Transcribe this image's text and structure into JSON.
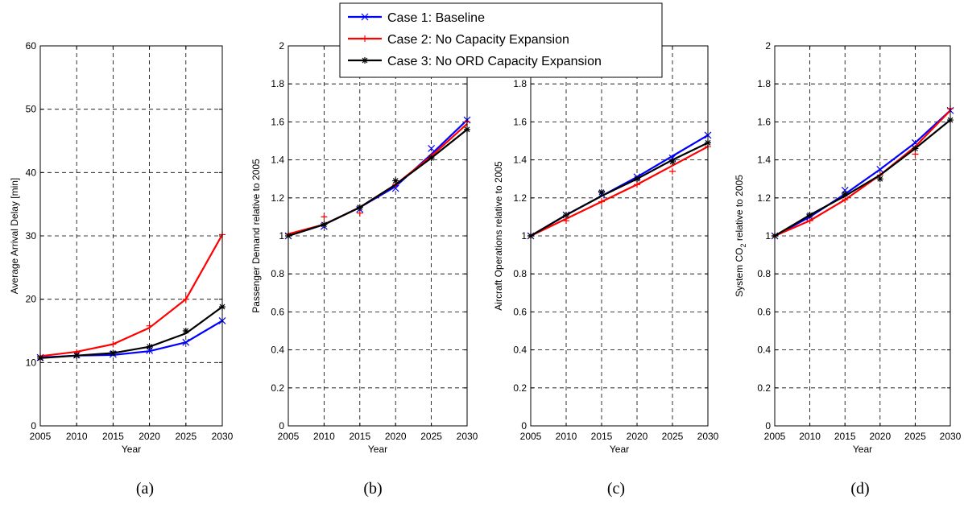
{
  "legend": {
    "entries": [
      {
        "label": "Case 1: Baseline",
        "color": "#0000ff",
        "marker": "x"
      },
      {
        "label": "Case 2: No Capacity Expansion",
        "color": "#ff0000",
        "marker": "+"
      },
      {
        "label": "Case 3: No ORD Capacity Expansion",
        "color": "#000000",
        "marker": "*"
      }
    ],
    "placement": "top-center"
  },
  "chart_data": [
    {
      "type": "line",
      "caption": "(a)",
      "xlabel": "Year",
      "ylabel": "Average Arrival Delay [min]",
      "x": [
        2005,
        2010,
        2015,
        2020,
        2025,
        2030
      ],
      "xlim": [
        2005,
        2030
      ],
      "ylim": [
        0,
        60
      ],
      "yticks": [
        0,
        10,
        20,
        30,
        40,
        50,
        60
      ],
      "ytick_labels": [
        "0",
        "10",
        "20",
        "30",
        "40",
        "50",
        "60"
      ],
      "grid": true,
      "series": [
        {
          "name": "Case 1: Baseline",
          "color": "#0000ff",
          "marker": "x",
          "line": [
            10.8,
            11.1,
            11.2,
            11.8,
            13.2,
            16.6
          ],
          "points": [
            10.8,
            11.2,
            11.3,
            11.9,
            13.2,
            16.6
          ]
        },
        {
          "name": "Case 2: No Capacity Expansion",
          "color": "#ff0000",
          "marker": "+",
          "line": [
            11.0,
            11.7,
            12.9,
            15.5,
            20.0,
            30.2
          ],
          "points": [
            11.0,
            11.6,
            12.9,
            15.8,
            20.0,
            30.2
          ]
        },
        {
          "name": "Case 3: No ORD Capacity Expansion",
          "color": "#000000",
          "marker": "*",
          "line": [
            10.7,
            11.1,
            11.5,
            12.5,
            14.6,
            18.8
          ],
          "points": [
            10.7,
            11.1,
            11.5,
            12.5,
            15.0,
            18.8
          ]
        }
      ]
    },
    {
      "type": "line",
      "caption": "(b)",
      "xlabel": "Year",
      "ylabel": "Passenger Demand relative to 2005",
      "x": [
        2005,
        2010,
        2015,
        2020,
        2025,
        2030
      ],
      "xlim": [
        2005,
        2030
      ],
      "ylim": [
        0,
        2
      ],
      "yticks": [
        0,
        0.2,
        0.4,
        0.6,
        0.8,
        1.0,
        1.2,
        1.4,
        1.6,
        1.8,
        2.0
      ],
      "ytick_labels": [
        "0",
        "0.2",
        "0.4",
        "0.6",
        "0.8",
        "1",
        "1.2",
        "1.4",
        "1.6",
        "1.8",
        "2"
      ],
      "grid": true,
      "series": [
        {
          "name": "Case 1: Baseline",
          "color": "#0000ff",
          "marker": "x",
          "line": [
            1.0,
            1.06,
            1.15,
            1.26,
            1.43,
            1.61
          ],
          "points": [
            1.0,
            1.05,
            1.14,
            1.25,
            1.46,
            1.61
          ]
        },
        {
          "name": "Case 2: No Capacity Expansion",
          "color": "#ff0000",
          "marker": "+",
          "line": [
            1.01,
            1.06,
            1.15,
            1.27,
            1.42,
            1.59
          ],
          "points": [
            1.01,
            1.1,
            1.12,
            1.27,
            1.42,
            1.6
          ]
        },
        {
          "name": "Case 3: No ORD Capacity Expansion",
          "color": "#000000",
          "marker": "*",
          "line": [
            1.0,
            1.06,
            1.15,
            1.27,
            1.41,
            1.56
          ],
          "points": [
            1.0,
            1.06,
            1.15,
            1.29,
            1.41,
            1.56
          ]
        }
      ]
    },
    {
      "type": "line",
      "caption": "(c)",
      "xlabel": "Year",
      "ylabel": "Aircraft Operations relative to 2005",
      "x": [
        2005,
        2010,
        2015,
        2020,
        2025,
        2030
      ],
      "xlim": [
        2005,
        2030
      ],
      "ylim": [
        0,
        2
      ],
      "yticks": [
        0,
        0.2,
        0.4,
        0.6,
        0.8,
        1.0,
        1.2,
        1.4,
        1.6,
        1.8,
        2.0
      ],
      "ytick_labels": [
        "0",
        "0.2",
        "0.4",
        "0.6",
        "0.8",
        "1",
        "1.2",
        "1.4",
        "1.6",
        "1.8",
        "2"
      ],
      "grid": true,
      "series": [
        {
          "name": "Case 1: Baseline",
          "color": "#0000ff",
          "marker": "x",
          "line": [
            1.0,
            1.11,
            1.21,
            1.31,
            1.42,
            1.53
          ],
          "points": [
            1.0,
            1.11,
            1.22,
            1.31,
            1.41,
            1.53
          ]
        },
        {
          "name": "Case 2: No Capacity Expansion",
          "color": "#ff0000",
          "marker": "+",
          "line": [
            1.0,
            1.09,
            1.18,
            1.27,
            1.37,
            1.47
          ],
          "points": [
            1.0,
            1.08,
            1.18,
            1.27,
            1.34,
            1.47
          ]
        },
        {
          "name": "Case 3: No ORD Capacity Expansion",
          "color": "#000000",
          "marker": "*",
          "line": [
            1.0,
            1.11,
            1.21,
            1.3,
            1.4,
            1.49
          ],
          "points": [
            1.0,
            1.11,
            1.23,
            1.3,
            1.39,
            1.49
          ]
        }
      ]
    },
    {
      "type": "line",
      "caption": "(d)",
      "xlabel": "Year",
      "ylabel": "System CO",
      "ylabel_subscript": "2",
      "ylabel_suffix": " relative to 2005",
      "x": [
        2005,
        2010,
        2015,
        2020,
        2025,
        2030
      ],
      "xlim": [
        2005,
        2030
      ],
      "ylim": [
        0,
        2
      ],
      "yticks": [
        0,
        0.2,
        0.4,
        0.6,
        0.8,
        1.0,
        1.2,
        1.4,
        1.6,
        1.8,
        2.0
      ],
      "ytick_labels": [
        "0",
        "0.2",
        "0.4",
        "0.6",
        "0.8",
        "1",
        "1.2",
        "1.4",
        "1.6",
        "1.8",
        "2"
      ],
      "grid": true,
      "series": [
        {
          "name": "Case 1: Baseline",
          "color": "#0000ff",
          "marker": "x",
          "line": [
            1.0,
            1.1,
            1.22,
            1.35,
            1.49,
            1.66
          ],
          "points": [
            1.0,
            1.1,
            1.24,
            1.35,
            1.49,
            1.66
          ]
        },
        {
          "name": "Case 2: No Capacity Expansion",
          "color": "#ff0000",
          "marker": "+",
          "line": [
            1.0,
            1.08,
            1.19,
            1.32,
            1.47,
            1.66
          ],
          "points": [
            1.0,
            1.08,
            1.19,
            1.32,
            1.43,
            1.67
          ]
        },
        {
          "name": "Case 3: No ORD Capacity Expansion",
          "color": "#000000",
          "marker": "*",
          "line": [
            1.0,
            1.11,
            1.21,
            1.32,
            1.46,
            1.61
          ],
          "points": [
            1.0,
            1.11,
            1.22,
            1.3,
            1.46,
            1.61
          ]
        }
      ]
    }
  ]
}
